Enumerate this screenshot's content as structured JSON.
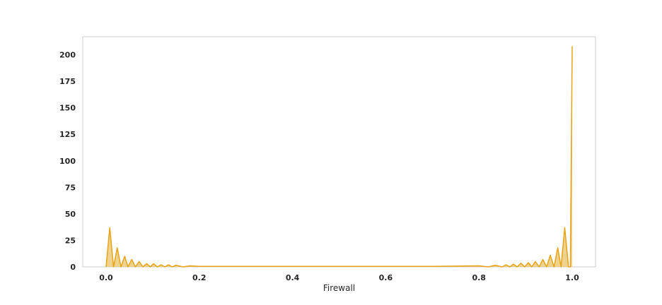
{
  "chart_data": {
    "type": "area",
    "title": "",
    "xlabel": "Firewall",
    "ylabel": "",
    "xlim": [
      -0.05,
      1.05
    ],
    "ylim": [
      0,
      217
    ],
    "grid": false,
    "legend": "none",
    "x_ticks": [
      {
        "value": 0.0,
        "label": "0.0"
      },
      {
        "value": 0.2,
        "label": "0.2"
      },
      {
        "value": 0.4,
        "label": "0.4"
      },
      {
        "value": 0.6,
        "label": "0.6"
      },
      {
        "value": 0.8,
        "label": "0.8"
      },
      {
        "value": 1.0,
        "label": "1.0"
      }
    ],
    "y_ticks": [
      {
        "value": 0,
        "label": "0"
      },
      {
        "value": 25,
        "label": "25"
      },
      {
        "value": 50,
        "label": "50"
      },
      {
        "value": 75,
        "label": "75"
      },
      {
        "value": 100,
        "label": "100"
      },
      {
        "value": 125,
        "label": "125"
      },
      {
        "value": 150,
        "label": "150"
      },
      {
        "value": 175,
        "label": "175"
      },
      {
        "value": 200,
        "label": "200"
      }
    ],
    "series": [
      {
        "color": "#e8a317",
        "fill": "#e8c46a",
        "x": [
          0.0,
          0.008,
          0.016,
          0.024,
          0.032,
          0.04,
          0.047,
          0.055,
          0.063,
          0.071,
          0.079,
          0.087,
          0.095,
          0.102,
          0.11,
          0.118,
          0.126,
          0.134,
          0.142,
          0.15,
          0.165,
          0.18,
          0.2,
          0.25,
          0.3,
          0.4,
          0.5,
          0.6,
          0.7,
          0.8,
          0.82,
          0.835,
          0.85,
          0.858,
          0.866,
          0.874,
          0.882,
          0.89,
          0.898,
          0.906,
          0.913,
          0.921,
          0.929,
          0.937,
          0.945,
          0.953,
          0.961,
          0.969,
          0.976,
          0.984,
          0.992,
          0.996,
          1.0
        ],
        "y": [
          0,
          37,
          0,
          18,
          0,
          10,
          0,
          7,
          0,
          5,
          0,
          3,
          0,
          3,
          0,
          2,
          0,
          2,
          0,
          1.5,
          0,
          1,
          0.5,
          0.5,
          0.5,
          0.5,
          0.5,
          0.5,
          0.5,
          1,
          0,
          1.5,
          0,
          2,
          0,
          2.5,
          0,
          3.5,
          0,
          4,
          0,
          5,
          0,
          7,
          0,
          11,
          0,
          18,
          0,
          37,
          0,
          0,
          208
        ]
      }
    ]
  }
}
